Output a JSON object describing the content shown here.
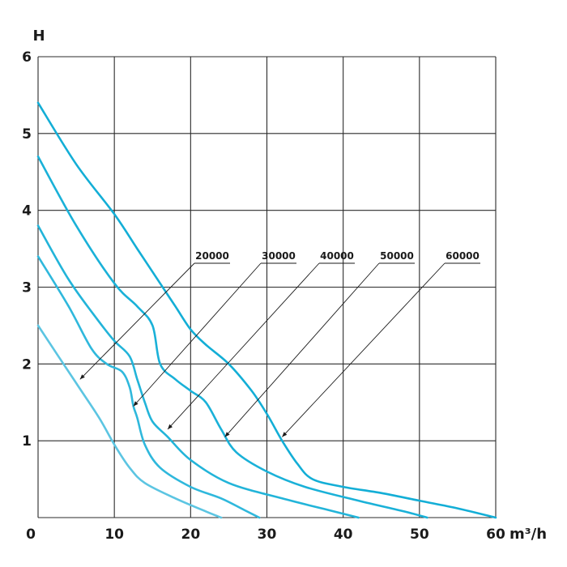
{
  "chart_data": {
    "type": "line",
    "ylabel": "H",
    "xunit": "m³/h",
    "xlim": [
      0,
      60
    ],
    "ylim": [
      0,
      6
    ],
    "x_ticks": [
      0,
      10,
      20,
      30,
      40,
      50,
      60
    ],
    "y_ticks": [
      0,
      1,
      2,
      3,
      4,
      5,
      6
    ],
    "grid": true,
    "series": [
      {
        "name": "20000",
        "color": "#5cc5e2",
        "points": [
          [
            0,
            2.5
          ],
          [
            5,
            1.75
          ],
          [
            8,
            1.3
          ],
          [
            10,
            0.95
          ],
          [
            12,
            0.65
          ],
          [
            14,
            0.45
          ],
          [
            18,
            0.25
          ],
          [
            22,
            0.08
          ],
          [
            24,
            0
          ]
        ]
      },
      {
        "name": "30000",
        "color": "#2fb8dc",
        "points": [
          [
            0,
            3.4
          ],
          [
            4,
            2.75
          ],
          [
            7,
            2.2
          ],
          [
            9,
            2.0
          ],
          [
            11,
            1.9
          ],
          [
            12,
            1.7
          ],
          [
            12.5,
            1.45
          ],
          [
            13,
            1.3
          ],
          [
            14,
            0.95
          ],
          [
            16,
            0.65
          ],
          [
            20,
            0.4
          ],
          [
            24,
            0.25
          ],
          [
            27,
            0.1
          ],
          [
            29,
            0
          ]
        ]
      },
      {
        "name": "40000",
        "color": "#22b4d9",
        "points": [
          [
            0,
            3.8
          ],
          [
            4,
            3.1
          ],
          [
            8,
            2.55
          ],
          [
            10,
            2.3
          ],
          [
            12,
            2.1
          ],
          [
            13,
            1.8
          ],
          [
            14,
            1.5
          ],
          [
            15,
            1.25
          ],
          [
            17,
            1.05
          ],
          [
            20,
            0.75
          ],
          [
            25,
            0.45
          ],
          [
            32,
            0.25
          ],
          [
            38,
            0.1
          ],
          [
            42,
            0
          ]
        ]
      },
      {
        "name": "50000",
        "color": "#1ab1d8",
        "points": [
          [
            0,
            4.7
          ],
          [
            5,
            3.8
          ],
          [
            10,
            3.05
          ],
          [
            13,
            2.75
          ],
          [
            15,
            2.5
          ],
          [
            16,
            2.0
          ],
          [
            18,
            1.8
          ],
          [
            20,
            1.65
          ],
          [
            22,
            1.5
          ],
          [
            24,
            1.15
          ],
          [
            26,
            0.85
          ],
          [
            30,
            0.6
          ],
          [
            35,
            0.4
          ],
          [
            42,
            0.22
          ],
          [
            48,
            0.08
          ],
          [
            51,
            0
          ]
        ]
      },
      {
        "name": "60000",
        "color": "#13aed6",
        "points": [
          [
            0,
            5.4
          ],
          [
            5,
            4.6
          ],
          [
            10,
            3.95
          ],
          [
            13,
            3.5
          ],
          [
            16,
            3.05
          ],
          [
            18,
            2.75
          ],
          [
            20,
            2.45
          ],
          [
            22,
            2.25
          ],
          [
            25,
            2.0
          ],
          [
            28,
            1.65
          ],
          [
            30,
            1.35
          ],
          [
            32,
            1.0
          ],
          [
            34,
            0.7
          ],
          [
            36,
            0.5
          ],
          [
            40,
            0.4
          ],
          [
            45,
            0.32
          ],
          [
            50,
            0.22
          ],
          [
            55,
            0.12
          ],
          [
            60,
            0
          ]
        ]
      }
    ],
    "labels": [
      {
        "series": "20000",
        "text": "20000",
        "arrow_at": [
          5.5,
          1.8
        ]
      },
      {
        "series": "30000",
        "text": "30000",
        "arrow_at": [
          12.5,
          1.45
        ]
      },
      {
        "series": "40000",
        "text": "40000",
        "arrow_at": [
          17,
          1.15
        ]
      },
      {
        "series": "50000",
        "text": "50000",
        "arrow_at": [
          24.5,
          1.05
        ]
      },
      {
        "series": "60000",
        "text": "60000",
        "arrow_at": [
          32,
          1.05
        ]
      }
    ]
  }
}
